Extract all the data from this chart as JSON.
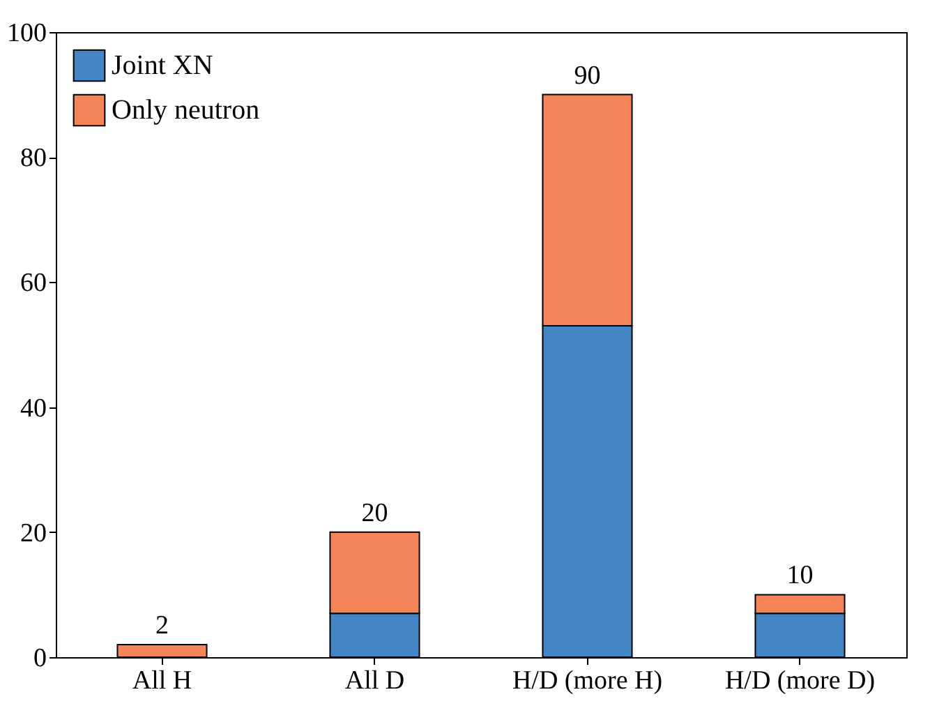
{
  "chart_data": {
    "type": "bar",
    "stacked": true,
    "categories": [
      "All H",
      "All D",
      "H/D (more H)",
      "H/D (more D)"
    ],
    "series": [
      {
        "name": "Joint XN",
        "color": "#4485c5",
        "values": [
          0,
          7,
          53,
          7
        ]
      },
      {
        "name": "Only neutron",
        "color": "#f58459",
        "values": [
          2,
          13,
          37,
          3
        ]
      }
    ],
    "totals": [
      "2",
      "20",
      "90",
      "10"
    ],
    "ylim": [
      0,
      100
    ],
    "yticks": [
      0,
      20,
      40,
      60,
      80,
      100
    ],
    "grid": false,
    "legend": "top left"
  }
}
